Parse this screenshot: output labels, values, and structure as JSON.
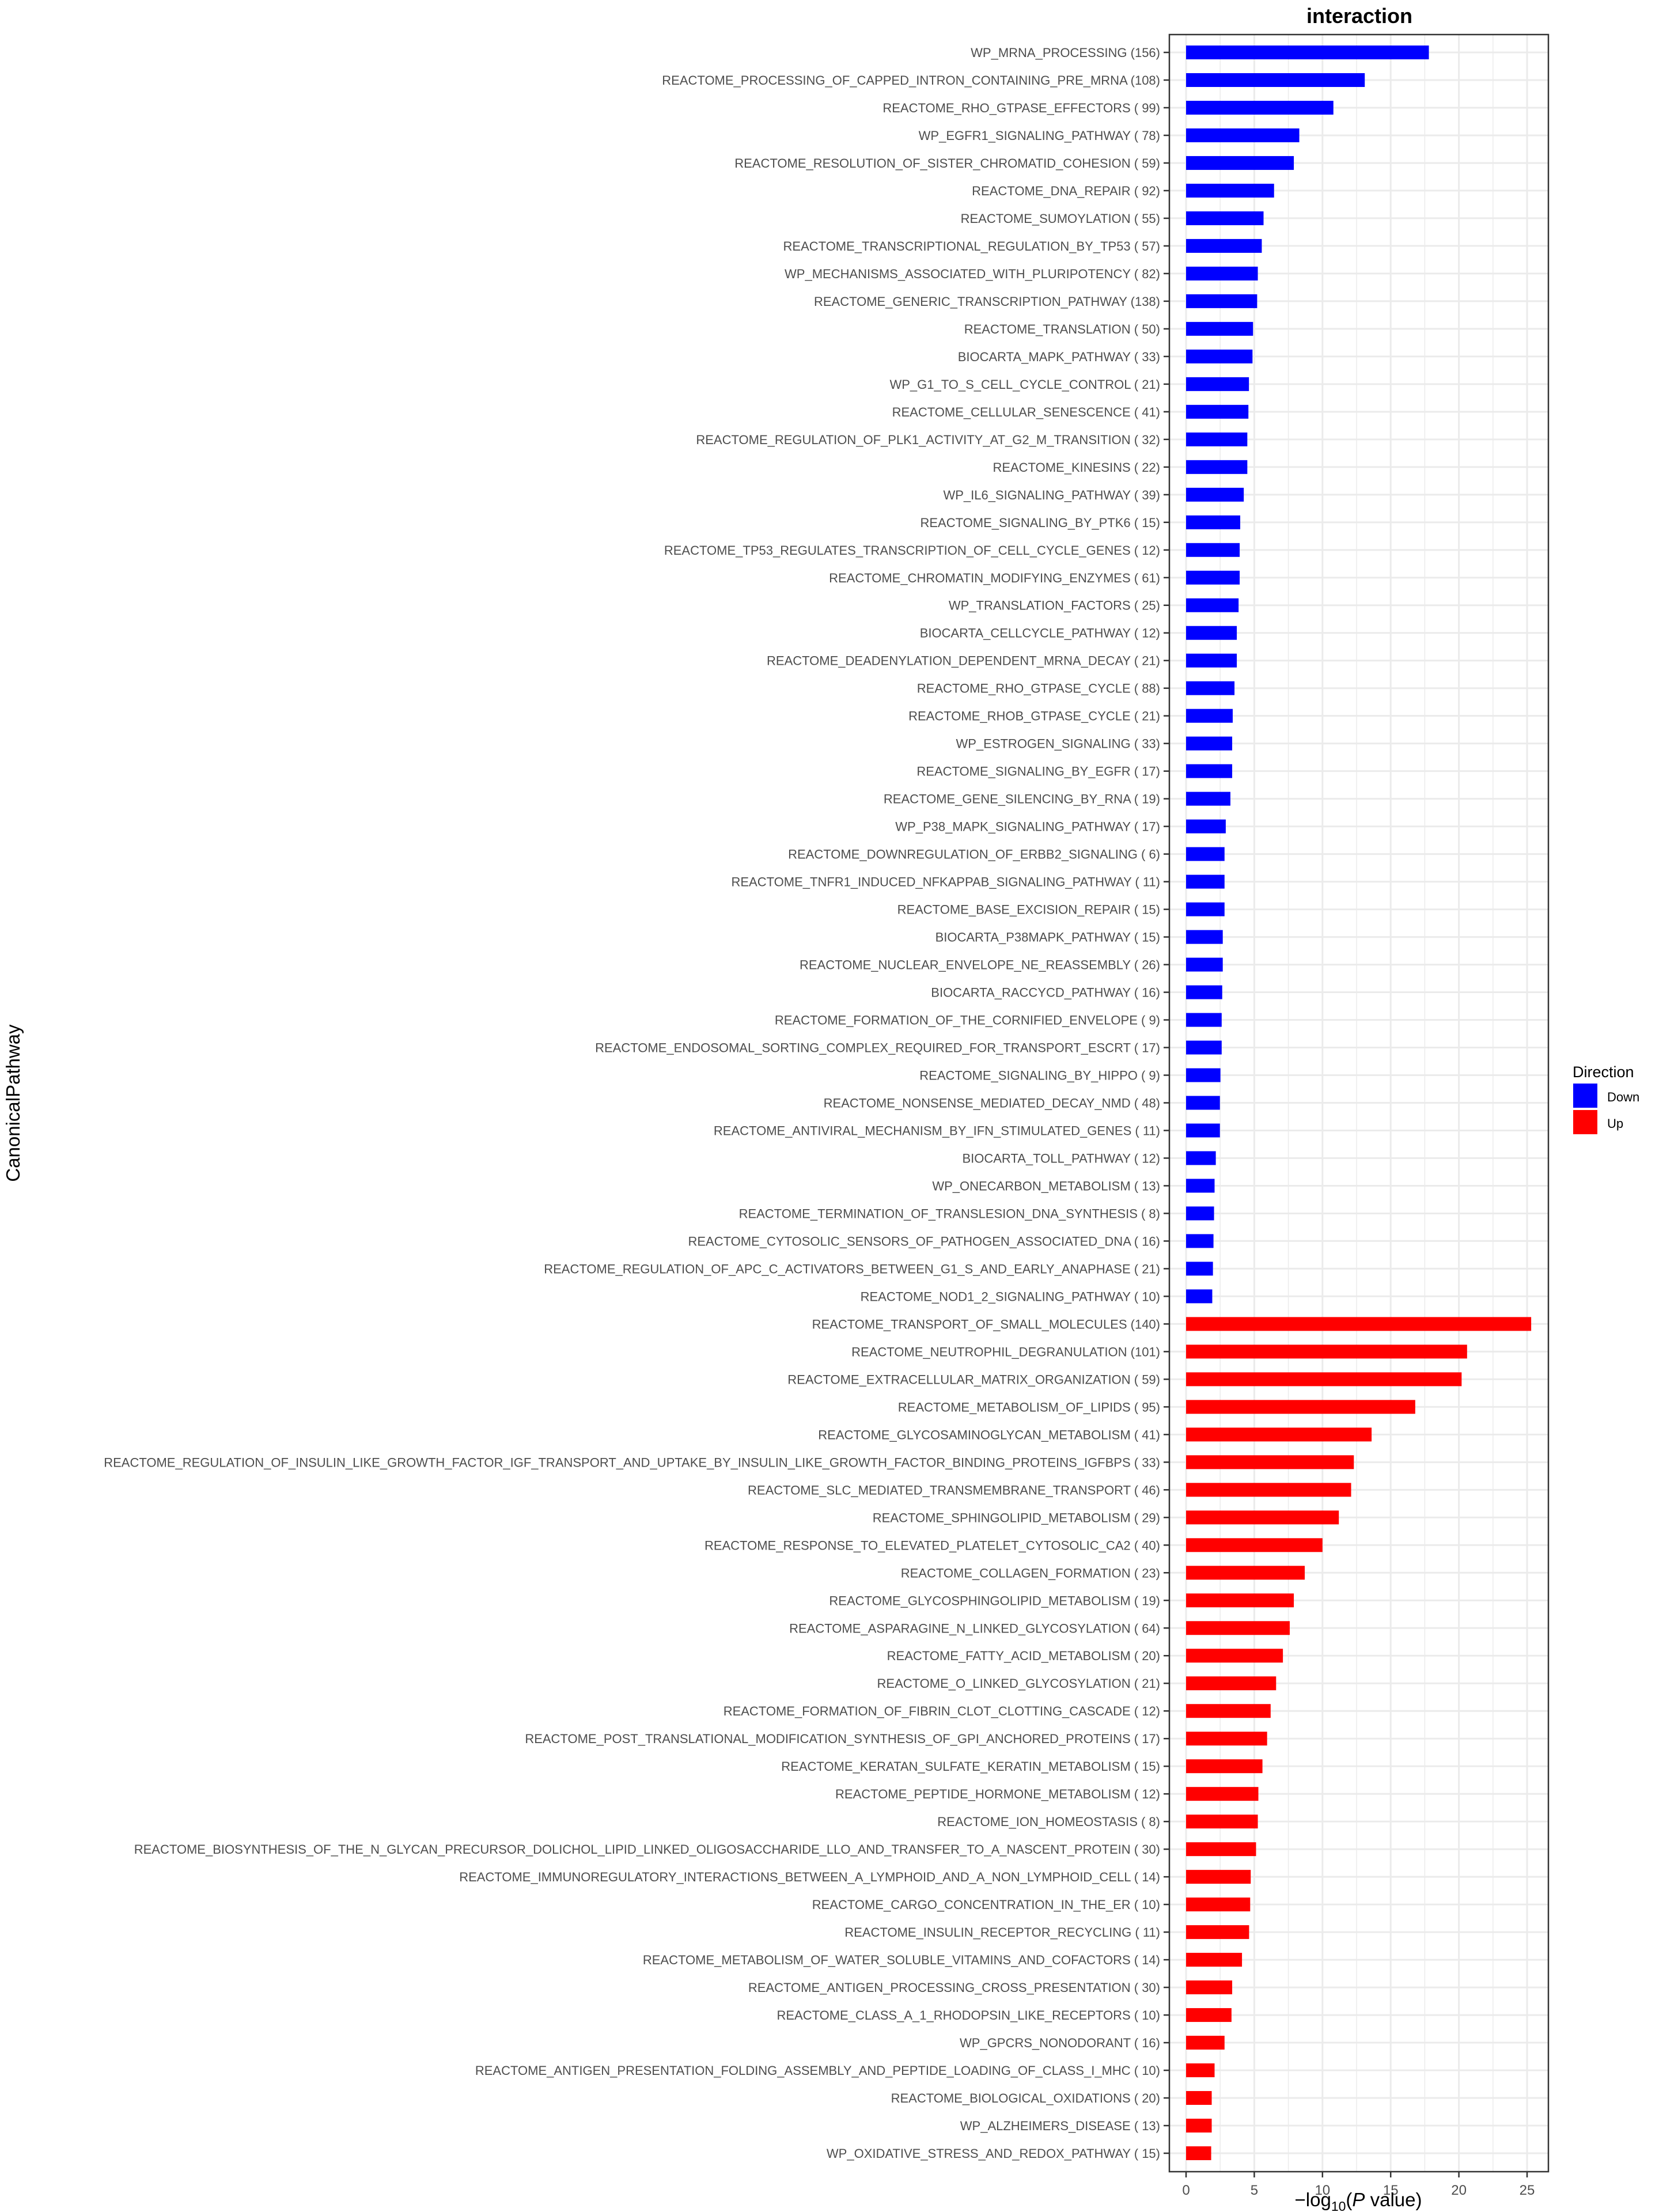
{
  "chart_data": {
    "type": "bar",
    "orientation": "horizontal",
    "title": "interaction",
    "xlabel": "-log10(P value)",
    "xlabel_parts": {
      "prefix": "−log",
      "sub": "10",
      "open": "(",
      "italic": "P",
      "rest": " value)"
    },
    "ylabel": "CanonicalPathway",
    "xlim": [
      0,
      26.5
    ],
    "xticks": [
      0,
      5,
      10,
      15,
      20,
      25
    ],
    "grid": true,
    "legend": {
      "title": "Direction",
      "placement": "right",
      "entries": [
        {
          "name": "Down",
          "color": "#0000FF"
        },
        {
          "name": "Up",
          "color": "#FF0000"
        }
      ]
    },
    "series": [
      {
        "name": "Down",
        "color": "#0000FF",
        "categories": [
          "WP_MRNA_PROCESSING (156)",
          "REACTOME_PROCESSING_OF_CAPPED_INTRON_CONTAINING_PRE_MRNA (108)",
          "REACTOME_RHO_GTPASE_EFFECTORS ( 99)",
          "WP_EGFR1_SIGNALING_PATHWAY ( 78)",
          "REACTOME_RESOLUTION_OF_SISTER_CHROMATID_COHESION ( 59)",
          "REACTOME_DNA_REPAIR ( 92)",
          "REACTOME_SUMOYLATION ( 55)",
          "REACTOME_TRANSCRIPTIONAL_REGULATION_BY_TP53 ( 57)",
          "WP_MECHANISMS_ASSOCIATED_WITH_PLURIPOTENCY ( 82)",
          "REACTOME_GENERIC_TRANSCRIPTION_PATHWAY (138)",
          "REACTOME_TRANSLATION ( 50)",
          "BIOCARTA_MAPK_PATHWAY ( 33)",
          "WP_G1_TO_S_CELL_CYCLE_CONTROL ( 21)",
          "REACTOME_CELLULAR_SENESCENCE ( 41)",
          "REACTOME_REGULATION_OF_PLK1_ACTIVITY_AT_G2_M_TRANSITION ( 32)",
          "REACTOME_KINESINS ( 22)",
          "WP_IL6_SIGNALING_PATHWAY ( 39)",
          "REACTOME_SIGNALING_BY_PTK6 ( 15)",
          "REACTOME_TP53_REGULATES_TRANSCRIPTION_OF_CELL_CYCLE_GENES ( 12)",
          "REACTOME_CHROMATIN_MODIFYING_ENZYMES ( 61)",
          "WP_TRANSLATION_FACTORS ( 25)",
          "BIOCARTA_CELLCYCLE_PATHWAY ( 12)",
          "REACTOME_DEADENYLATION_DEPENDENT_MRNA_DECAY ( 21)",
          "REACTOME_RHO_GTPASE_CYCLE ( 88)",
          "REACTOME_RHOB_GTPASE_CYCLE ( 21)",
          "WP_ESTROGEN_SIGNALING ( 33)",
          "REACTOME_SIGNALING_BY_EGFR ( 17)",
          "REACTOME_GENE_SILENCING_BY_RNA ( 19)",
          "WP_P38_MAPK_SIGNALING_PATHWAY ( 17)",
          "REACTOME_DOWNREGULATION_OF_ERBB2_SIGNALING (  6)",
          "REACTOME_TNFR1_INDUCED_NFKAPPAB_SIGNALING_PATHWAY ( 11)",
          "REACTOME_BASE_EXCISION_REPAIR ( 15)",
          "BIOCARTA_P38MAPK_PATHWAY ( 15)",
          "REACTOME_NUCLEAR_ENVELOPE_NE_REASSEMBLY ( 26)",
          "BIOCARTA_RACCYCD_PATHWAY ( 16)",
          "REACTOME_FORMATION_OF_THE_CORNIFIED_ENVELOPE (  9)",
          "REACTOME_ENDOSOMAL_SORTING_COMPLEX_REQUIRED_FOR_TRANSPORT_ESCRT ( 17)",
          "REACTOME_SIGNALING_BY_HIPPO (  9)",
          "REACTOME_NONSENSE_MEDIATED_DECAY_NMD ( 48)",
          "REACTOME_ANTIVIRAL_MECHANISM_BY_IFN_STIMULATED_GENES ( 11)",
          "BIOCARTA_TOLL_PATHWAY ( 12)",
          "WP_ONECARBON_METABOLISM ( 13)",
          "REACTOME_TERMINATION_OF_TRANSLESION_DNA_SYNTHESIS (  8)",
          "REACTOME_CYTOSOLIC_SENSORS_OF_PATHOGEN_ASSOCIATED_DNA ( 16)",
          "REACTOME_REGULATION_OF_APC_C_ACTIVATORS_BETWEEN_G1_S_AND_EARLY_ANAPHASE ( 21)",
          "REACTOME_NOD1_2_SIGNALING_PATHWAY ( 10)"
        ],
        "values": [
          17.8,
          13.1,
          10.8,
          8.3,
          7.9,
          6.45,
          5.68,
          5.55,
          5.26,
          5.21,
          4.91,
          4.87,
          4.61,
          4.57,
          4.49,
          4.49,
          4.23,
          3.97,
          3.93,
          3.93,
          3.85,
          3.72,
          3.72,
          3.55,
          3.42,
          3.38,
          3.38,
          3.25,
          2.91,
          2.82,
          2.82,
          2.82,
          2.69,
          2.69,
          2.65,
          2.61,
          2.61,
          2.52,
          2.48,
          2.48,
          2.18,
          2.09,
          2.05,
          2.01,
          1.97,
          1.92
        ]
      },
      {
        "name": "Up",
        "color": "#FF0000",
        "categories": [
          "REACTOME_TRANSPORT_OF_SMALL_MOLECULES (140)",
          "REACTOME_NEUTROPHIL_DEGRANULATION (101)",
          "REACTOME_EXTRACELLULAR_MATRIX_ORGANIZATION ( 59)",
          "REACTOME_METABOLISM_OF_LIPIDS ( 95)",
          "REACTOME_GLYCOSAMINOGLYCAN_METABOLISM ( 41)",
          "REACTOME_REGULATION_OF_INSULIN_LIKE_GROWTH_FACTOR_IGF_TRANSPORT_AND_UPTAKE_BY_INSULIN_LIKE_GROWTH_FACTOR_BINDING_PROTEINS_IGFBPS ( 33)",
          "REACTOME_SLC_MEDIATED_TRANSMEMBRANE_TRANSPORT ( 46)",
          "REACTOME_SPHINGOLIPID_METABOLISM ( 29)",
          "REACTOME_RESPONSE_TO_ELEVATED_PLATELET_CYTOSOLIC_CA2 ( 40)",
          "REACTOME_COLLAGEN_FORMATION ( 23)",
          "REACTOME_GLYCOSPHINGOLIPID_METABOLISM ( 19)",
          "REACTOME_ASPARAGINE_N_LINKED_GLYCOSYLATION ( 64)",
          "REACTOME_FATTY_ACID_METABOLISM ( 20)",
          "REACTOME_O_LINKED_GLYCOSYLATION ( 21)",
          "REACTOME_FORMATION_OF_FIBRIN_CLOT_CLOTTING_CASCADE ( 12)",
          "REACTOME_POST_TRANSLATIONAL_MODIFICATION_SYNTHESIS_OF_GPI_ANCHORED_PROTEINS ( 17)",
          "REACTOME_KERATAN_SULFATE_KERATIN_METABOLISM ( 15)",
          "REACTOME_PEPTIDE_HORMONE_METABOLISM ( 12)",
          "REACTOME_ION_HOMEOSTASIS (  8)",
          "REACTOME_BIOSYNTHESIS_OF_THE_N_GLYCAN_PRECURSOR_DOLICHOL_LIPID_LINKED_OLIGOSACCHARIDE_LLO_AND_TRANSFER_TO_A_NASCENT_PROTEIN ( 30)",
          "REACTOME_IMMUNOREGULATORY_INTERACTIONS_BETWEEN_A_LYMPHOID_AND_A_NON_LYMPHOID_CELL ( 14)",
          "REACTOME_CARGO_CONCENTRATION_IN_THE_ER ( 10)",
          "REACTOME_INSULIN_RECEPTOR_RECYCLING ( 11)",
          "REACTOME_METABOLISM_OF_WATER_SOLUBLE_VITAMINS_AND_COFACTORS ( 14)",
          "REACTOME_ANTIGEN_PROCESSING_CROSS_PRESENTATION ( 30)",
          "REACTOME_CLASS_A_1_RHODOPSIN_LIKE_RECEPTORS ( 10)",
          "WP_GPCRS_NONODORANT ( 16)",
          "REACTOME_ANTIGEN_PRESENTATION_FOLDING_ASSEMBLY_AND_PEPTIDE_LOADING_OF_CLASS_I_MHC ( 10)",
          "REACTOME_BIOLOGICAL_OXIDATIONS ( 20)",
          "WP_ALZHEIMERS_DISEASE ( 13)",
          "WP_OXIDATIVE_STRESS_AND_REDOX_PATHWAY ( 15)"
        ],
        "values": [
          25.3,
          20.6,
          20.2,
          16.8,
          13.6,
          12.3,
          12.1,
          11.2,
          10.0,
          8.7,
          7.9,
          7.6,
          7.1,
          6.6,
          6.2,
          5.94,
          5.6,
          5.3,
          5.26,
          5.13,
          4.74,
          4.7,
          4.62,
          4.1,
          3.38,
          3.33,
          2.82,
          2.09,
          1.88,
          1.88,
          1.84
        ]
      }
    ]
  }
}
